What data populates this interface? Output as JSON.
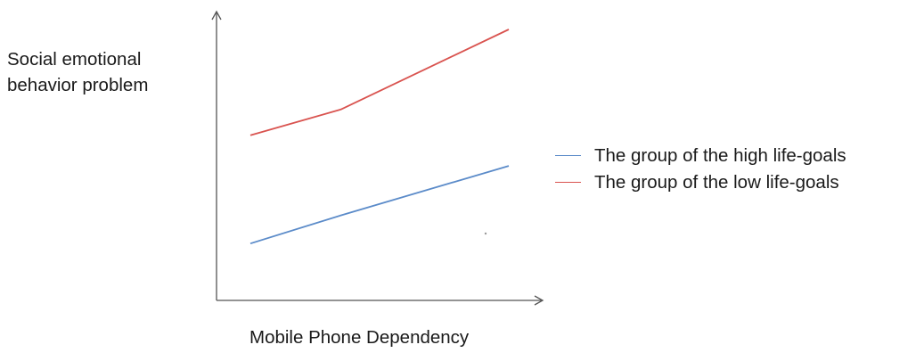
{
  "chart_data": {
    "type": "line",
    "title": "",
    "xlabel": "Mobile Phone Dependency",
    "ylabel_lines": [
      "Social emotional",
      "behavior problem"
    ],
    "x": [
      0,
      0.35,
      1
    ],
    "xlim": [
      0,
      1
    ],
    "ylim": [
      0,
      1
    ],
    "grid": false,
    "ticks": false,
    "legend_position": "right",
    "series": [
      {
        "name": "The group of the high life-goals",
        "color": "#5b8bc9",
        "y": [
          0.09,
          0.21,
          0.42
        ]
      },
      {
        "name": "The group of the low life-goals",
        "color": "#d9534f",
        "y": [
          0.55,
          0.66,
          1.0
        ]
      }
    ]
  }
}
